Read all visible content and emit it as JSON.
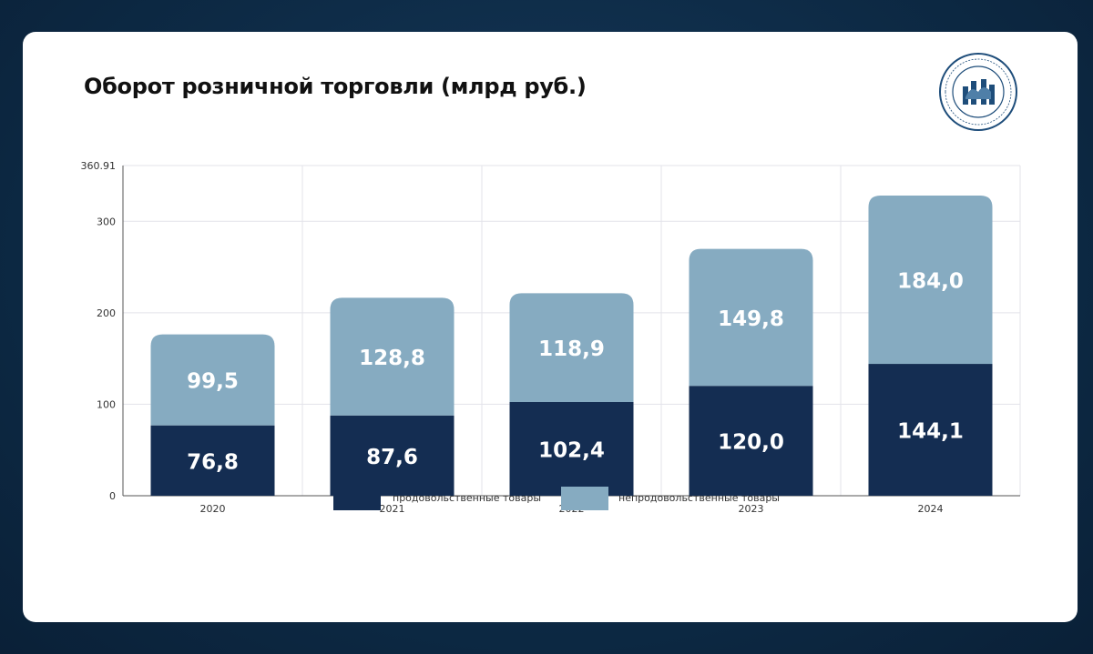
{
  "header": {
    "title": "Оборот розничной торговли (млрд руб.)",
    "logo_icon": "camel-emblem-icon",
    "logo_text": "УПРАВЛЕНИЕ ЭКОНОМИКИ АДМИНИСТРАЦИИ Г. ЧЕЛЯБИНСКА"
  },
  "colors": {
    "background": "#0d2a45",
    "food": "#142d52",
    "nonfood": "#86abc1",
    "grid": "#e3e3ea"
  },
  "chart_data": {
    "type": "bar",
    "stacked": true,
    "categories": [
      "2020",
      "2021",
      "2022",
      "2023",
      "2024"
    ],
    "series": [
      {
        "name": "продовольственные товары",
        "values": [
          76.8,
          87.6,
          102.4,
          120.0,
          144.1
        ],
        "labels": [
          "76,8",
          "87,6",
          "102,4",
          "120,0",
          "144,1"
        ],
        "color": "#142d52"
      },
      {
        "name": "непродовольственные товары",
        "values": [
          99.5,
          128.8,
          118.9,
          149.8,
          184.0
        ],
        "labels": [
          "99,5",
          "128,8",
          "118,9",
          "149,8",
          "184,0"
        ],
        "color": "#86abc1"
      }
    ],
    "ylim": [
      0,
      360.91
    ],
    "yticks": [
      0,
      100,
      200,
      300,
      360.91
    ],
    "ytick_labels": [
      "0",
      "100",
      "200",
      "300",
      "360.91"
    ],
    "grid": true,
    "legend_position": "bottom"
  }
}
